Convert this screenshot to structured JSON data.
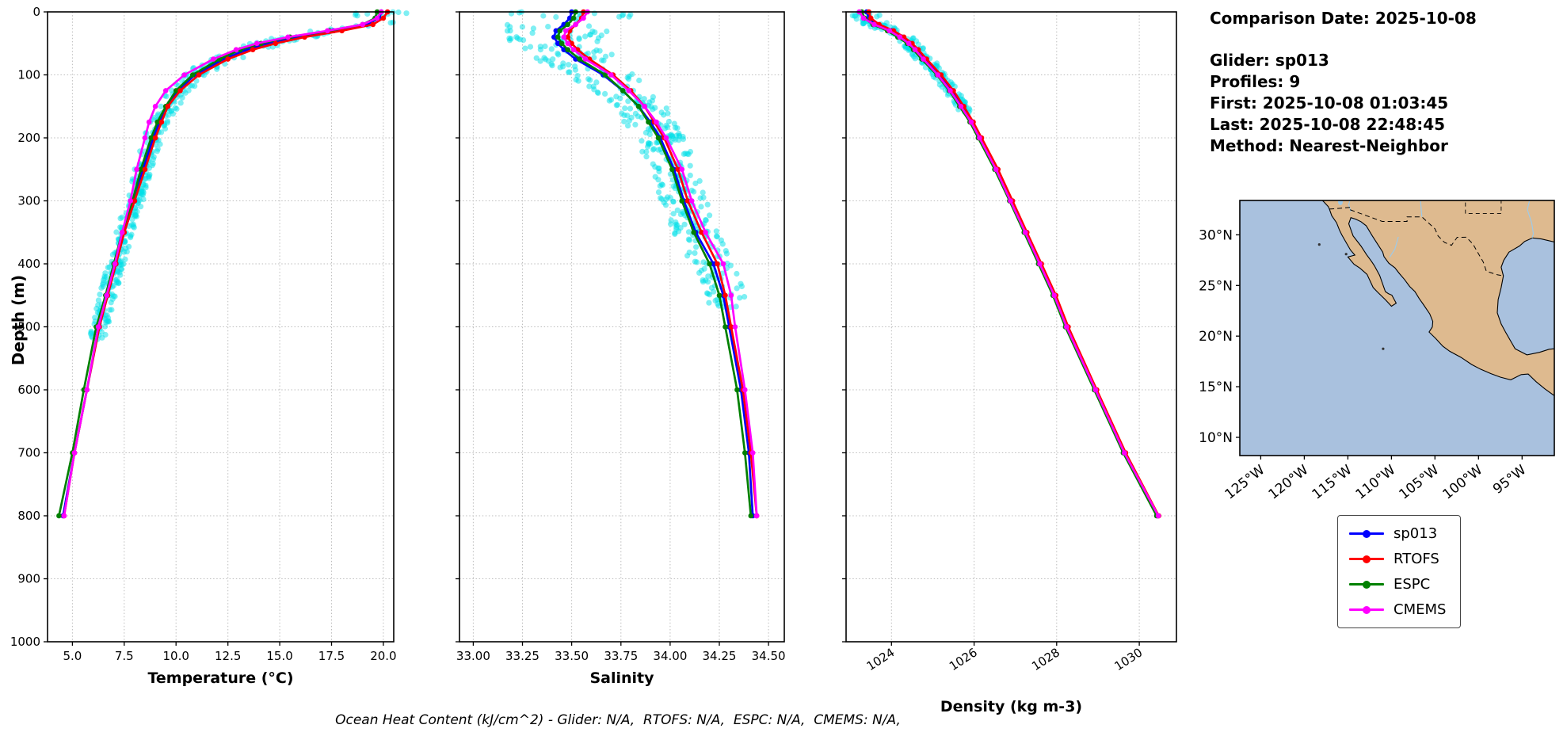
{
  "ylabel": "Depth (m)",
  "caption": "Ocean Heat Content (kJ/cm^2) - Glider: N/A,  RTOFS: N/A,  ESPC: N/A,  CMEMS: N/A,",
  "info": {
    "title": "Comparison Date: 2025-10-08",
    "lines": [
      "Glider: sp013",
      "Profiles: 9",
      "First: 2025-10-08 01:03:45",
      "Last: 2025-10-08 22:48:45",
      "Method: Nearest-Neighbor"
    ]
  },
  "legend": [
    {
      "label": "sp013",
      "color": "#0000ff"
    },
    {
      "label": "RTOFS",
      "color": "#ff0000"
    },
    {
      "label": "ESPC",
      "color": "#008000"
    },
    {
      "label": "CMEMS",
      "color": "#ff00ff"
    }
  ],
  "chart_data": [
    {
      "type": "line",
      "id": "temperature",
      "xlabel": "Temperature (°C)",
      "ylabel": "Depth (m)",
      "xlim": [
        3.8,
        20.5
      ],
      "ylim": [
        0,
        1000
      ],
      "y_inverted": true,
      "grid": true,
      "xtick_rotation": 0,
      "xticks": [
        {
          "v": 5.0,
          "label": "5.0"
        },
        {
          "v": 7.5,
          "label": "7.5"
        },
        {
          "v": 10.0,
          "label": "10.0"
        },
        {
          "v": 12.5,
          "label": "12.5"
        },
        {
          "v": 15.0,
          "label": "15.0"
        },
        {
          "v": 17.5,
          "label": "17.5"
        },
        {
          "v": 20.0,
          "label": "20.0"
        }
      ],
      "yticks": [
        0,
        100,
        200,
        300,
        400,
        500,
        600,
        700,
        800,
        900,
        1000
      ],
      "depths": [
        0,
        10,
        20,
        30,
        40,
        50,
        60,
        75,
        100,
        125,
        150,
        175,
        200,
        250,
        300,
        350,
        400,
        450,
        500,
        600,
        700,
        800
      ],
      "series": [
        {
          "name": "sp013",
          "color": "#0000ff",
          "values": [
            19.9,
            19.8,
            19.2,
            17.6,
            15.8,
            14.4,
            13.4,
            12.3,
            10.9,
            10.1,
            9.6,
            9.2,
            8.9,
            8.4,
            8.0,
            7.5,
            7.1,
            6.7,
            6.3,
            5.7,
            5.1,
            4.55
          ]
        },
        {
          "name": "ESPC",
          "color": "#008000",
          "values": [
            19.7,
            19.6,
            19.0,
            17.4,
            15.5,
            14.1,
            13.1,
            12.1,
            10.8,
            10.0,
            9.5,
            9.1,
            8.8,
            8.3,
            7.9,
            7.4,
            7.0,
            6.6,
            6.15,
            5.55,
            5.0,
            4.35
          ]
        },
        {
          "name": "RTOFS",
          "color": "#ff0000",
          "values": [
            20.2,
            20.0,
            19.5,
            18.0,
            16.2,
            14.8,
            13.7,
            12.5,
            11.1,
            10.2,
            9.6,
            9.3,
            9.0,
            8.5,
            8.0,
            7.5,
            7.1,
            6.7,
            6.3,
            5.7,
            5.1,
            4.6
          ]
        },
        {
          "name": "CMEMS",
          "color": "#ff00ff",
          "values": [
            19.9,
            19.7,
            19.0,
            17.3,
            15.4,
            13.9,
            12.9,
            11.8,
            10.4,
            9.5,
            9.0,
            8.7,
            8.5,
            8.1,
            7.8,
            7.4,
            7.05,
            6.65,
            6.25,
            5.7,
            5.1,
            4.6
          ]
        }
      ],
      "scatter": {
        "name": "glider-raw",
        "color": "#00e0e8",
        "n": 400,
        "jitter": 0.4,
        "max_depth": 520,
        "seed": 7
      }
    },
    {
      "type": "line",
      "id": "salinity",
      "xlabel": "Salinity",
      "ylabel": "Depth (m)",
      "xlim": [
        32.93,
        34.58
      ],
      "ylim": [
        0,
        1000
      ],
      "y_inverted": true,
      "grid": true,
      "xtick_rotation": 0,
      "xticks": [
        {
          "v": 33.0,
          "label": "33.00"
        },
        {
          "v": 33.25,
          "label": "33.25"
        },
        {
          "v": 33.5,
          "label": "33.50"
        },
        {
          "v": 33.75,
          "label": "33.75"
        },
        {
          "v": 34.0,
          "label": "34.00"
        },
        {
          "v": 34.25,
          "label": "34.25"
        },
        {
          "v": 34.5,
          "label": "34.50"
        }
      ],
      "yticks": [
        0,
        100,
        200,
        300,
        400,
        500,
        600,
        700,
        800,
        900,
        1000
      ],
      "depths": [
        0,
        10,
        20,
        30,
        40,
        50,
        60,
        75,
        100,
        125,
        150,
        175,
        200,
        250,
        300,
        350,
        400,
        450,
        500,
        600,
        700,
        800
      ],
      "series": [
        {
          "name": "sp013",
          "color": "#0000ff",
          "values": [
            33.5,
            33.49,
            33.46,
            33.42,
            33.41,
            33.43,
            33.46,
            33.52,
            33.66,
            33.76,
            33.84,
            33.9,
            33.95,
            34.02,
            34.07,
            34.13,
            34.22,
            34.27,
            34.3,
            34.36,
            34.4,
            34.42
          ]
        },
        {
          "name": "ESPC",
          "color": "#008000",
          "values": [
            33.52,
            33.51,
            33.48,
            33.44,
            33.43,
            33.45,
            33.48,
            33.54,
            33.67,
            33.76,
            33.84,
            33.89,
            33.94,
            34.01,
            34.06,
            34.12,
            34.2,
            34.25,
            34.28,
            34.34,
            34.38,
            34.41
          ]
        },
        {
          "name": "RTOFS",
          "color": "#ff0000",
          "values": [
            33.56,
            33.55,
            33.52,
            33.49,
            33.48,
            33.5,
            33.53,
            33.59,
            33.71,
            33.8,
            33.87,
            33.92,
            33.97,
            34.04,
            34.09,
            34.16,
            34.24,
            34.28,
            34.31,
            34.37,
            34.41,
            34.44
          ]
        },
        {
          "name": "CMEMS",
          "color": "#ff00ff",
          "values": [
            33.58,
            33.56,
            33.52,
            33.47,
            33.46,
            33.48,
            33.51,
            33.57,
            33.7,
            33.79,
            33.87,
            33.93,
            33.98,
            34.06,
            34.11,
            34.18,
            34.27,
            34.31,
            34.33,
            34.38,
            34.42,
            34.44
          ]
        }
      ],
      "scatter": {
        "name": "glider-raw",
        "color": "#00e0e8",
        "n": 400,
        "jitter": 0.11,
        "max_depth": 470,
        "seed": 11
      }
    },
    {
      "type": "line",
      "id": "density",
      "xlabel": "Density (kg m-3)",
      "ylabel": "Depth (m)",
      "xlim": [
        1022.9,
        1030.9
      ],
      "ylim": [
        0,
        1000
      ],
      "y_inverted": true,
      "grid": true,
      "xtick_rotation": 33,
      "xticks": [
        {
          "v": 1024,
          "label": "1024"
        },
        {
          "v": 1026,
          "label": "1026"
        },
        {
          "v": 1028,
          "label": "1028"
        },
        {
          "v": 1030,
          "label": "1030"
        }
      ],
      "yticks": [
        0,
        100,
        200,
        300,
        400,
        500,
        600,
        700,
        800,
        900,
        1000
      ],
      "depths": [
        0,
        10,
        20,
        30,
        40,
        50,
        60,
        75,
        100,
        125,
        150,
        175,
        200,
        250,
        300,
        350,
        400,
        450,
        500,
        600,
        700,
        800
      ],
      "series": [
        {
          "name": "sp013",
          "color": "#0000ff",
          "values": [
            1023.4,
            1023.45,
            1023.65,
            1024.0,
            1024.25,
            1024.45,
            1024.6,
            1024.8,
            1025.15,
            1025.45,
            1025.7,
            1025.95,
            1026.15,
            1026.55,
            1026.9,
            1027.25,
            1027.6,
            1027.95,
            1028.25,
            1028.95,
            1029.65,
            1030.45
          ]
        },
        {
          "name": "ESPC",
          "color": "#008000",
          "values": [
            1023.28,
            1023.35,
            1023.55,
            1023.9,
            1024.15,
            1024.38,
            1024.53,
            1024.73,
            1025.1,
            1025.4,
            1025.65,
            1025.9,
            1026.1,
            1026.5,
            1026.86,
            1027.21,
            1027.56,
            1027.91,
            1028.21,
            1028.91,
            1029.61,
            1030.42
          ]
        },
        {
          "name": "RTOFS",
          "color": "#ff0000",
          "values": [
            1023.45,
            1023.5,
            1023.7,
            1024.05,
            1024.3,
            1024.5,
            1024.65,
            1024.85,
            1025.2,
            1025.5,
            1025.75,
            1025.98,
            1026.18,
            1026.58,
            1026.93,
            1027.28,
            1027.63,
            1027.98,
            1028.28,
            1028.97,
            1029.67,
            1030.47
          ]
        },
        {
          "name": "CMEMS",
          "color": "#ff00ff",
          "values": [
            1023.22,
            1023.32,
            1023.58,
            1023.95,
            1024.2,
            1024.42,
            1024.57,
            1024.77,
            1025.12,
            1025.42,
            1025.68,
            1025.93,
            1026.13,
            1026.53,
            1026.88,
            1027.24,
            1027.59,
            1027.94,
            1028.24,
            1028.94,
            1029.64,
            1030.46
          ]
        }
      ],
      "scatter": {
        "name": "glider-raw",
        "color": "#00e0e8",
        "n": 150,
        "jitter": 0.12,
        "max_depth": 160,
        "seed": 13
      }
    }
  ],
  "map": {
    "ocean_color": "#a9c1de",
    "land_color": "#deba8f",
    "river_color": "#9ecae8",
    "extent": [
      -127.4,
      -91.3,
      8.2,
      33.4
    ],
    "lat_ticks": [
      {
        "v": 30,
        "label": "30°N"
      },
      {
        "v": 25,
        "label": "25°N"
      },
      {
        "v": 20,
        "label": "20°N"
      },
      {
        "v": 15,
        "label": "15°N"
      },
      {
        "v": 10,
        "label": "10°N"
      }
    ],
    "lon_ticks": [
      {
        "v": -125,
        "label": "125°W"
      },
      {
        "v": -120,
        "label": "120°W"
      },
      {
        "v": -115,
        "label": "115°W"
      },
      {
        "v": -110,
        "label": "110°W"
      },
      {
        "v": -105,
        "label": "105°W"
      },
      {
        "v": -100,
        "label": "100°W"
      },
      {
        "v": -95,
        "label": "95°W"
      }
    ],
    "land": [
      [
        -118.5,
        33.9
      ],
      [
        -117.8,
        33.3
      ],
      [
        -117.25,
        32.8
      ],
      [
        -117.12,
        32.55
      ],
      [
        -116.85,
        31.9
      ],
      [
        -116.3,
        31.2
      ],
      [
        -115.95,
        30.45
      ],
      [
        -115.7,
        30.0
      ],
      [
        -115.3,
        29.4
      ],
      [
        -114.7,
        28.5
      ],
      [
        -114.2,
        28.0
      ],
      [
        -115.0,
        27.82
      ],
      [
        -114.3,
        27.1
      ],
      [
        -113.6,
        26.7
      ],
      [
        -112.8,
        26.1
      ],
      [
        -112.1,
        24.8
      ],
      [
        -111.6,
        24.35
      ],
      [
        -110.7,
        23.6
      ],
      [
        -110.0,
        22.95
      ],
      [
        -109.45,
        23.25
      ],
      [
        -109.95,
        24.05
      ],
      [
        -110.35,
        24.2
      ],
      [
        -110.7,
        24.4
      ],
      [
        -111.35,
        26.0
      ],
      [
        -111.95,
        26.95
      ],
      [
        -112.3,
        27.4
      ],
      [
        -112.85,
        28.05
      ],
      [
        -113.5,
        28.9
      ],
      [
        -114.4,
        29.9
      ],
      [
        -114.9,
        31.1
      ],
      [
        -114.65,
        31.7
      ],
      [
        -114.1,
        31.55
      ],
      [
        -113.5,
        31.3
      ],
      [
        -112.9,
        30.9
      ],
      [
        -112.2,
        29.9
      ],
      [
        -111.6,
        29.1
      ],
      [
        -111.0,
        28.3
      ],
      [
        -110.85,
        27.85
      ],
      [
        -110.3,
        27.2
      ],
      [
        -109.6,
        26.75
      ],
      [
        -109.1,
        26.2
      ],
      [
        -108.5,
        25.6
      ],
      [
        -107.9,
        24.9
      ],
      [
        -107.3,
        24.4
      ],
      [
        -106.8,
        23.7
      ],
      [
        -106.35,
        23.15
      ],
      [
        -105.6,
        22.2
      ],
      [
        -105.25,
        21.45
      ],
      [
        -105.3,
        20.9
      ],
      [
        -105.68,
        20.4
      ],
      [
        -104.9,
        19.75
      ],
      [
        -104.1,
        19.0
      ],
      [
        -103.3,
        18.5
      ],
      [
        -102.0,
        17.9
      ],
      [
        -100.8,
        17.2
      ],
      [
        -99.8,
        16.75
      ],
      [
        -98.6,
        16.3
      ],
      [
        -97.5,
        15.95
      ],
      [
        -96.3,
        15.68
      ],
      [
        -95.1,
        16.2
      ],
      [
        -94.3,
        16.25
      ],
      [
        -93.4,
        15.5
      ],
      [
        -92.4,
        14.8
      ],
      [
        -90.8,
        13.8
      ],
      [
        -90.8,
        18.8
      ],
      [
        -91.9,
        18.7
      ],
      [
        -93.0,
        18.4
      ],
      [
        -94.45,
        18.15
      ],
      [
        -95.8,
        18.75
      ],
      [
        -96.3,
        19.5
      ],
      [
        -96.9,
        20.4
      ],
      [
        -97.4,
        21.2
      ],
      [
        -97.85,
        22.3
      ],
      [
        -97.75,
        23.6
      ],
      [
        -97.4,
        24.8
      ],
      [
        -97.15,
        25.95
      ],
      [
        -97.4,
        26.8
      ],
      [
        -97.1,
        27.5
      ],
      [
        -96.5,
        28.3
      ],
      [
        -95.3,
        28.9
      ],
      [
        -94.7,
        29.35
      ],
      [
        -93.8,
        29.7
      ],
      [
        -92.8,
        29.6
      ],
      [
        -90.8,
        29.2
      ],
      [
        -90.8,
        33.9
      ]
    ],
    "us_border": [
      [
        -117.12,
        32.55
      ],
      [
        -116.0,
        32.62
      ],
      [
        -114.72,
        32.72
      ],
      [
        -114.8,
        32.5
      ],
      [
        -111.05,
        31.33
      ],
      [
        -108.2,
        31.33
      ],
      [
        -108.2,
        31.78
      ],
      [
        -106.5,
        31.78
      ],
      [
        -105.0,
        30.6
      ],
      [
        -104.65,
        29.9
      ],
      [
        -103.9,
        29.25
      ],
      [
        -103.1,
        28.97
      ],
      [
        -102.45,
        29.76
      ],
      [
        -101.4,
        29.77
      ],
      [
        -100.65,
        29.1
      ],
      [
        -99.95,
        28.05
      ],
      [
        -99.45,
        27.3
      ],
      [
        -99.1,
        26.4
      ],
      [
        -97.8,
        26.05
      ],
      [
        -97.15,
        25.95
      ]
    ],
    "state_line": [
      [
        -101.5,
        33.9
      ],
      [
        -101.5,
        32.1
      ],
      [
        -97.4,
        32.1
      ],
      [
        -97.4,
        33.9
      ]
    ],
    "rivers": [
      [
        [
          -94.0,
          33.9
        ],
        [
          -94.4,
          32.5
        ],
        [
          -93.9,
          31.2
        ],
        [
          -93.7,
          30.1
        ],
        [
          -93.85,
          29.7
        ]
      ],
      [
        [
          -106.7,
          33.9
        ],
        [
          -106.6,
          32.8
        ],
        [
          -106.5,
          31.78
        ]
      ],
      [
        [
          -109.2,
          29.8
        ],
        [
          -109.6,
          28.6
        ],
        [
          -110.2,
          27.8
        ]
      ],
      [
        [
          -114.6,
          33.9
        ],
        [
          -114.9,
          33.0
        ],
        [
          -114.65,
          32.3
        ]
      ]
    ],
    "lake": [
      -115.85,
      33.25
    ],
    "islands": [
      [
        -118.28,
        29.05
      ],
      [
        -110.95,
        18.75
      ],
      [
        -115.2,
        28.1
      ]
    ]
  }
}
